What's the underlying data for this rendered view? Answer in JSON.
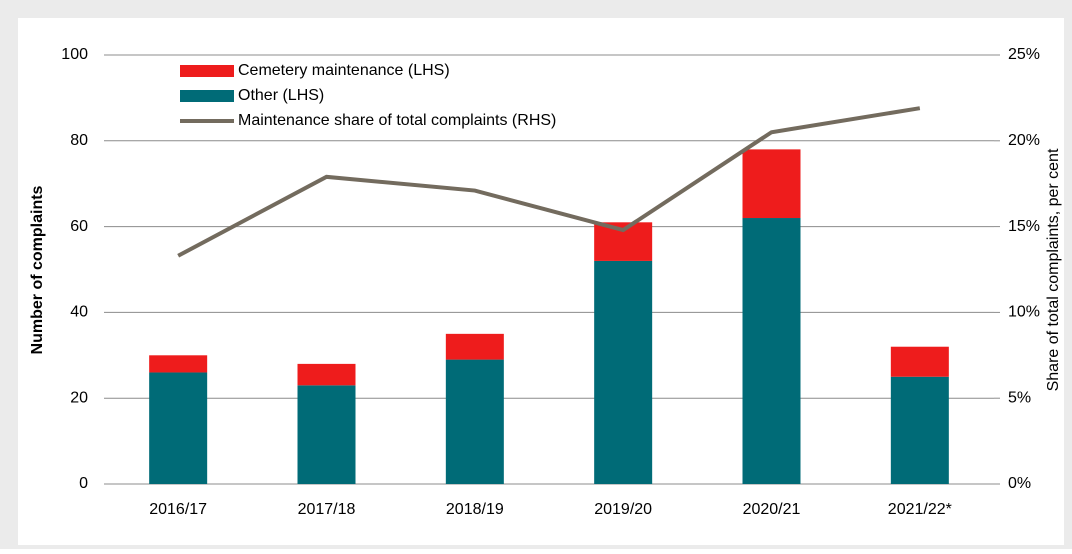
{
  "chart_data": {
    "type": "bar",
    "y_label": "Number of complaints",
    "y2_label": "Share of total complaints, per cent",
    "categories": [
      "2016/17",
      "2017/18",
      "2018/19",
      "2019/20",
      "2020/21",
      "2021/22*"
    ],
    "series": [
      {
        "name": "Cemetery maintenance (LHS)",
        "type": "bar",
        "color": "#ee1c1c",
        "values": [
          4,
          5,
          6,
          9,
          16,
          7
        ]
      },
      {
        "name": "Other (LHS)",
        "type": "bar",
        "color": "#006b77",
        "values": [
          26,
          23,
          29,
          52,
          62,
          25
        ]
      },
      {
        "name": "Maintenance share of total complaints (RHS)",
        "type": "line",
        "axis": "y2",
        "color": "#736b5e",
        "values": [
          13.3,
          17.9,
          17.1,
          14.8,
          20.5,
          21.9
        ]
      }
    ],
    "stacked": true,
    "ylim": [
      0,
      100
    ],
    "yticks": [
      0,
      20,
      40,
      60,
      80,
      100
    ],
    "y2lim": [
      0,
      25
    ],
    "y2ticks": [
      {
        "value": 0,
        "label": "0%"
      },
      {
        "value": 5,
        "label": "5%"
      },
      {
        "value": 10,
        "label": "10%"
      },
      {
        "value": 15,
        "label": "15%"
      },
      {
        "value": 20,
        "label": "20%"
      },
      {
        "value": 25,
        "label": "25%"
      }
    ],
    "grid": true,
    "legend": "top-left"
  }
}
